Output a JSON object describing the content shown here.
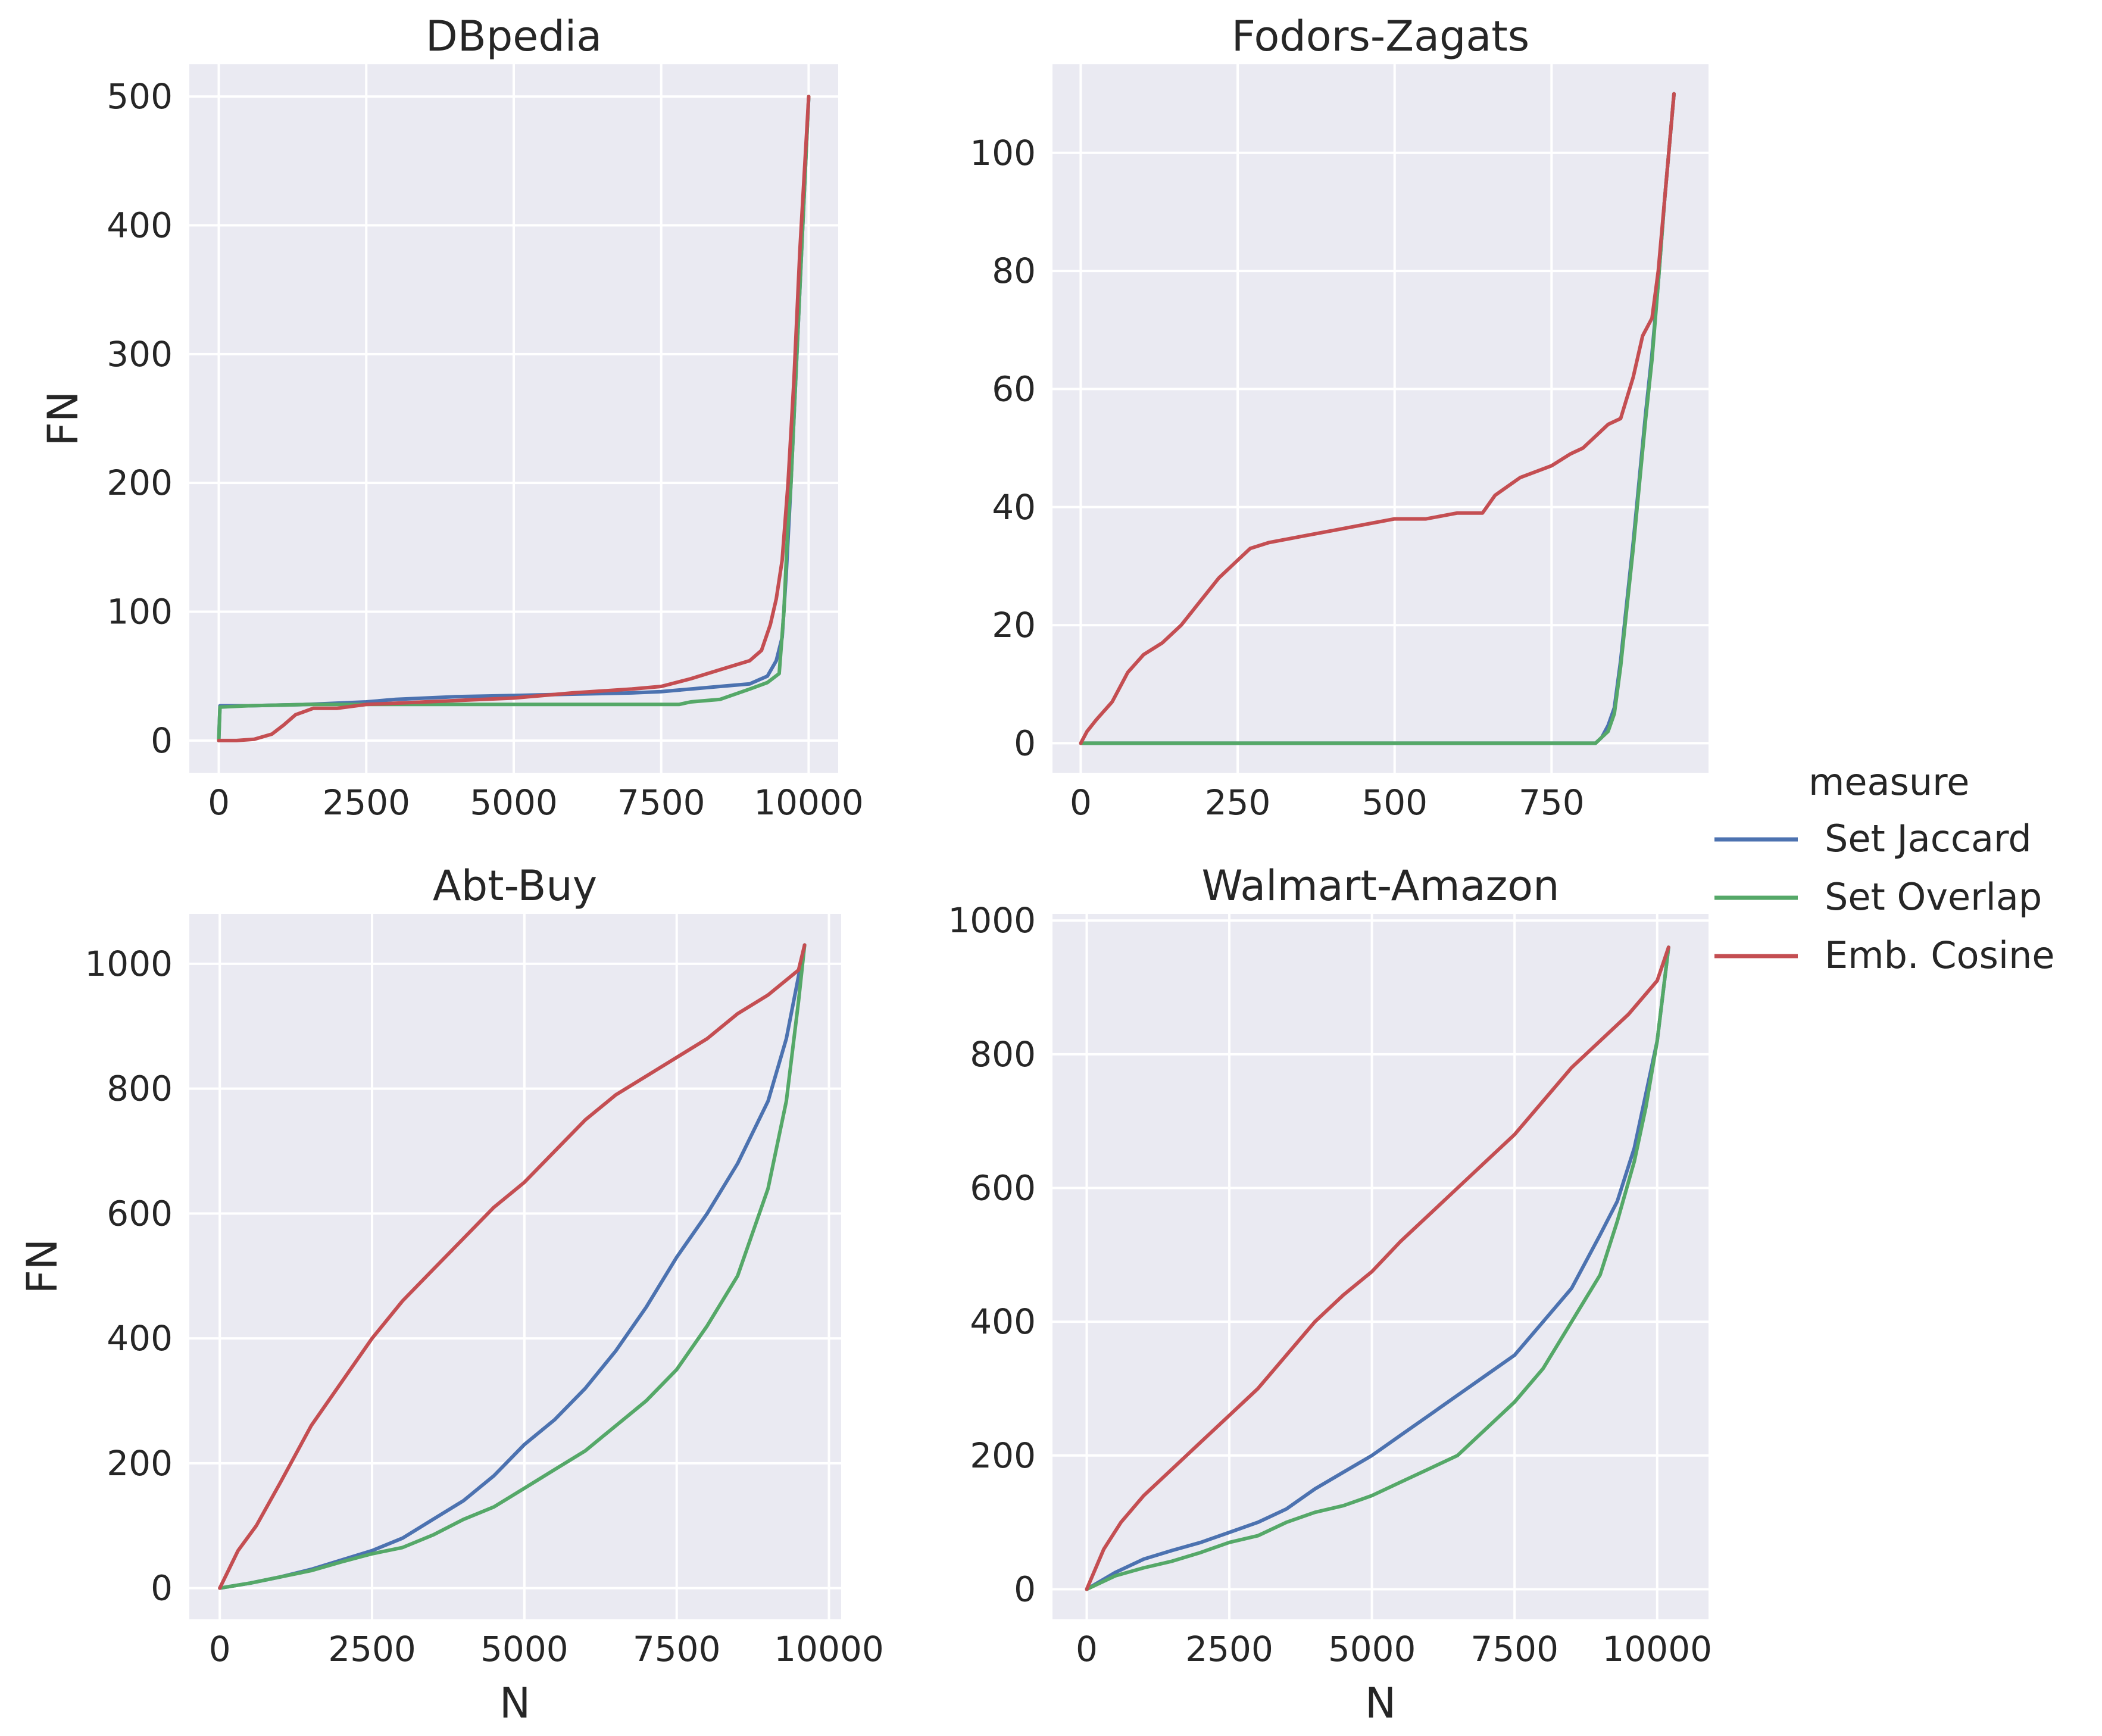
{
  "legend": {
    "title": "measure",
    "placement": "right",
    "entries": [
      {
        "label": "Set Jaccard",
        "color": "#4c72b0"
      },
      {
        "label": "Set Overlap",
        "color": "#55a868"
      },
      {
        "label": "Emb. Cosine",
        "color": "#c44e52"
      }
    ]
  },
  "chart_data": [
    {
      "type": "line",
      "title": "DBpedia",
      "xlabel": "",
      "ylabel": "FN",
      "xlim": [
        -500,
        10500
      ],
      "ylim": [
        -25,
        525
      ],
      "xticks": [
        0,
        2500,
        5000,
        7500,
        10000
      ],
      "xtick_labels": [
        "0",
        "2500",
        "5000",
        "7500",
        "10000"
      ],
      "yticks": [
        0,
        100,
        200,
        300,
        400,
        500
      ],
      "ytick_labels": [
        "0",
        "100",
        "200",
        "300",
        "400",
        "500"
      ],
      "grid": true,
      "series": [
        {
          "name": "Set Jaccard",
          "color": "#4c72b0",
          "x": [
            0,
            20,
            500,
            1500,
            2500,
            3000,
            4000,
            5000,
            6000,
            7000,
            7500,
            8000,
            8500,
            9000,
            9300,
            9450,
            9550,
            9620,
            9700,
            9800,
            9900,
            10000
          ],
          "y": [
            0,
            27,
            27,
            28,
            30,
            32,
            34,
            35,
            36,
            37,
            38,
            40,
            42,
            44,
            50,
            62,
            80,
            130,
            200,
            300,
            400,
            500
          ]
        },
        {
          "name": "Set Overlap",
          "color": "#55a868",
          "x": [
            0,
            20,
            500,
            1500,
            2000,
            3000,
            4000,
            5000,
            6000,
            7000,
            7800,
            8000,
            8500,
            9000,
            9300,
            9500,
            9580,
            9640,
            9700,
            9800,
            9900,
            10000
          ],
          "y": [
            0,
            26,
            27,
            28,
            28,
            28,
            28,
            28,
            28,
            28,
            28,
            30,
            32,
            40,
            45,
            52,
            100,
            160,
            200,
            300,
            400,
            500
          ]
        },
        {
          "name": "Emb. Cosine",
          "color": "#c44e52",
          "x": [
            0,
            300,
            600,
            900,
            1100,
            1300,
            1600,
            2000,
            2500,
            3500,
            5000,
            6000,
            7000,
            7500,
            8000,
            8500,
            9000,
            9200,
            9350,
            9450,
            9550,
            9650,
            9750,
            9850,
            10000
          ],
          "y": [
            0,
            0,
            1,
            5,
            12,
            20,
            25,
            25,
            28,
            30,
            33,
            37,
            40,
            42,
            48,
            55,
            62,
            70,
            90,
            110,
            140,
            200,
            280,
            380,
            500
          ]
        }
      ]
    },
    {
      "type": "line",
      "title": "Fodors-Zagats",
      "xlabel": "",
      "ylabel": "",
      "xlim": [
        -45,
        1000
      ],
      "ylim": [
        -5,
        115
      ],
      "xticks": [
        0,
        250,
        500,
        750
      ],
      "xtick_labels": [
        "0",
        "250",
        "500",
        "750"
      ],
      "yticks": [
        0,
        20,
        40,
        60,
        80,
        100
      ],
      "ytick_labels": [
        "0",
        "20",
        "40",
        "60",
        "80",
        "100"
      ],
      "grid": true,
      "series": [
        {
          "name": "Set Jaccard",
          "color": "#4c72b0",
          "x": [
            0,
            820,
            830,
            840,
            850,
            860,
            870,
            880,
            890,
            900,
            910,
            920,
            930,
            945
          ],
          "y": [
            0,
            0,
            1,
            3,
            6,
            14,
            24,
            34,
            45,
            56,
            66,
            78,
            92,
            110
          ]
        },
        {
          "name": "Set Overlap",
          "color": "#55a868",
          "x": [
            0,
            820,
            830,
            840,
            850,
            860,
            870,
            880,
            890,
            900,
            910,
            920,
            930,
            945
          ],
          "y": [
            0,
            0,
            1,
            2,
            5,
            13,
            23,
            33,
            44,
            55,
            65,
            78,
            92,
            110
          ]
        },
        {
          "name": "Emb. Cosine",
          "color": "#c44e52",
          "x": [
            0,
            10,
            25,
            50,
            75,
            100,
            130,
            160,
            190,
            220,
            250,
            270,
            300,
            350,
            400,
            450,
            500,
            550,
            600,
            640,
            660,
            700,
            750,
            780,
            800,
            820,
            840,
            860,
            880,
            895,
            910,
            920,
            930,
            945
          ],
          "y": [
            0,
            2,
            4,
            7,
            12,
            15,
            17,
            20,
            24,
            28,
            31,
            33,
            34,
            35,
            36,
            37,
            38,
            38,
            39,
            39,
            42,
            45,
            47,
            49,
            50,
            52,
            54,
            55,
            62,
            69,
            72,
            80,
            92,
            110
          ]
        }
      ]
    },
    {
      "type": "line",
      "title": "Abt-Buy",
      "xlabel": "N",
      "ylabel": "FN",
      "xlim": [
        -500,
        10200
      ],
      "ylim": [
        -50,
        1080
      ],
      "xticks": [
        0,
        2500,
        5000,
        7500,
        10000
      ],
      "xtick_labels": [
        "0",
        "2500",
        "5000",
        "7500",
        "10000"
      ],
      "yticks": [
        0,
        200,
        400,
        600,
        800,
        1000
      ],
      "ytick_labels": [
        "0",
        "200",
        "400",
        "600",
        "800",
        "1000"
      ],
      "grid": true,
      "series": [
        {
          "name": "Set Jaccard",
          "color": "#4c72b0",
          "x": [
            0,
            500,
            1000,
            1500,
            2000,
            2500,
            3000,
            3500,
            4000,
            4500,
            5000,
            5500,
            6000,
            6500,
            7000,
            7500,
            8000,
            8500,
            9000,
            9300,
            9500,
            9600
          ],
          "y": [
            0,
            8,
            18,
            30,
            45,
            60,
            80,
            110,
            140,
            180,
            230,
            270,
            320,
            380,
            450,
            530,
            600,
            680,
            780,
            880,
            980,
            1030
          ]
        },
        {
          "name": "Set Overlap",
          "color": "#55a868",
          "x": [
            0,
            500,
            1000,
            1500,
            2000,
            2500,
            3000,
            3500,
            4000,
            4500,
            5000,
            5500,
            6000,
            6500,
            7000,
            7500,
            8000,
            8500,
            9000,
            9300,
            9500,
            9600
          ],
          "y": [
            0,
            8,
            18,
            28,
            42,
            55,
            65,
            85,
            110,
            130,
            160,
            190,
            220,
            260,
            300,
            350,
            420,
            500,
            640,
            780,
            940,
            1030
          ]
        },
        {
          "name": "Emb. Cosine",
          "color": "#c44e52",
          "x": [
            0,
            300,
            600,
            1000,
            1500,
            2000,
            2500,
            3000,
            3500,
            4000,
            4500,
            5000,
            5500,
            6000,
            6500,
            7000,
            7500,
            8000,
            8500,
            9000,
            9500,
            9600
          ],
          "y": [
            0,
            60,
            100,
            170,
            260,
            330,
            400,
            460,
            510,
            560,
            610,
            650,
            700,
            750,
            790,
            820,
            850,
            880,
            920,
            950,
            990,
            1030
          ]
        }
      ]
    },
    {
      "type": "line",
      "title": "Walmart-Amazon",
      "xlabel": "N",
      "ylabel": "",
      "xlim": [
        -600,
        10900
      ],
      "ylim": [
        -45,
        1010
      ],
      "xticks": [
        0,
        2500,
        5000,
        7500,
        10000
      ],
      "xtick_labels": [
        "0",
        "2500",
        "5000",
        "7500",
        "10000"
      ],
      "yticks": [
        0,
        200,
        400,
        600,
        800,
        1000
      ],
      "ytick_labels": [
        "0",
        "200",
        "400",
        "600",
        "800",
        "1000"
      ],
      "grid": true,
      "series": [
        {
          "name": "Set Jaccard",
          "color": "#4c72b0",
          "x": [
            0,
            500,
            1000,
            1500,
            2000,
            2500,
            3000,
            3500,
            4000,
            4500,
            5000,
            5500,
            6000,
            6500,
            7000,
            7500,
            8000,
            8500,
            9000,
            9300,
            9600,
            9800,
            10000,
            10200
          ],
          "y": [
            0,
            25,
            45,
            58,
            70,
            85,
            100,
            120,
            150,
            175,
            200,
            230,
            260,
            290,
            320,
            350,
            400,
            450,
            530,
            580,
            660,
            740,
            820,
            960
          ]
        },
        {
          "name": "Set Overlap",
          "color": "#55a868",
          "x": [
            0,
            500,
            1000,
            1500,
            2000,
            2500,
            3000,
            3500,
            4000,
            4500,
            5000,
            5500,
            6000,
            6500,
            7000,
            7500,
            8000,
            8500,
            9000,
            9300,
            9600,
            9800,
            10000,
            10200
          ],
          "y": [
            0,
            20,
            32,
            42,
            55,
            70,
            80,
            100,
            115,
            125,
            140,
            160,
            180,
            200,
            240,
            280,
            330,
            400,
            470,
            550,
            640,
            720,
            820,
            960
          ]
        },
        {
          "name": "Emb. Cosine",
          "color": "#c44e52",
          "x": [
            0,
            300,
            600,
            1000,
            1500,
            2000,
            2500,
            3000,
            3500,
            4000,
            4500,
            5000,
            5500,
            6000,
            6500,
            7000,
            7500,
            8000,
            8500,
            9000,
            9500,
            10000,
            10200
          ],
          "y": [
            0,
            60,
            100,
            140,
            180,
            220,
            260,
            300,
            350,
            400,
            440,
            475,
            520,
            560,
            600,
            640,
            680,
            730,
            780,
            820,
            860,
            910,
            960
          ]
        }
      ]
    }
  ]
}
